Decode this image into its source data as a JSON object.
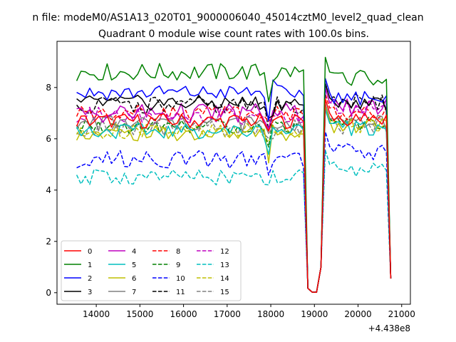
{
  "figure": {
    "suptitle": "n file: modeM0/AS1A13_020T01_9000006040_45014cztM0_level2_quad_clean",
    "offset_text": "+4.438e8"
  },
  "chart_data": {
    "type": "line",
    "title": "Quadrant 0 module wise count rates with 100.0s bins.",
    "xlabel": "",
    "ylabel": "",
    "x_offset": 443800000,
    "xlim": [
      13100,
      21200
    ],
    "ylim": [
      -0.45,
      9.8
    ],
    "x_ticks": [
      14000,
      15000,
      16000,
      17000,
      18000,
      19000,
      20000,
      21000
    ],
    "x_tick_labels": [
      "14000",
      "15000",
      "16000",
      "17000",
      "18000",
      "19000",
      "20000",
      "21000"
    ],
    "y_ticks": [
      0,
      2,
      4,
      6,
      8
    ],
    "y_tick_labels": [
      "0",
      "2",
      "4",
      "6",
      "8"
    ],
    "grid": false,
    "legend_position": "lower-left",
    "legend_columns": 4,
    "x_start": 13550,
    "x_step": 100,
    "gap": {
      "start": 18850,
      "end": 19150,
      "values": [
        0.17,
        0.02,
        0.02,
        1.0
      ]
    },
    "end_value": 0.55,
    "series": [
      {
        "name": "0",
        "color": "#ff0000",
        "style": "solid",
        "level": 6.7,
        "amp": 0.3,
        "post": 6.8
      },
      {
        "name": "1",
        "color": "#008000",
        "style": "solid",
        "level": 8.6,
        "amp": 0.35,
        "post": 8.4
      },
      {
        "name": "2",
        "color": "#0000ff",
        "style": "solid",
        "level": 7.8,
        "amp": 0.3,
        "post": 7.6
      },
      {
        "name": "3",
        "color": "#000000",
        "style": "solid",
        "level": 7.4,
        "amp": 0.3,
        "post": 7.4
      },
      {
        "name": "4",
        "color": "#bf00bf",
        "style": "solid",
        "level": 7.0,
        "amp": 0.4,
        "post": 7.2
      },
      {
        "name": "5",
        "color": "#00bfbf",
        "style": "solid",
        "level": 6.3,
        "amp": 0.3,
        "post": 6.4
      },
      {
        "name": "6",
        "color": "#bfbf00",
        "style": "solid",
        "level": 6.2,
        "amp": 0.3,
        "post": 6.5
      },
      {
        "name": "7",
        "color": "#808080",
        "style": "solid",
        "level": 6.6,
        "amp": 0.35,
        "post": 6.6
      },
      {
        "name": "8",
        "color": "#ff0000",
        "style": "dashed",
        "level": 7.0,
        "amp": 0.3,
        "post": 7.0
      },
      {
        "name": "9",
        "color": "#008000",
        "style": "dashed",
        "level": 6.5,
        "amp": 0.3,
        "post": 6.6
      },
      {
        "name": "10",
        "color": "#0000ff",
        "style": "dashed",
        "level": 5.2,
        "amp": 0.35,
        "post": 5.5
      },
      {
        "name": "11",
        "color": "#000000",
        "style": "dashed",
        "level": 7.3,
        "amp": 0.35,
        "post": 7.4
      },
      {
        "name": "12",
        "color": "#bf00bf",
        "style": "dashed",
        "level": 6.9,
        "amp": 0.35,
        "post": 7.2
      },
      {
        "name": "13",
        "color": "#00bfbf",
        "style": "dashed",
        "level": 4.5,
        "amp": 0.3,
        "post": 4.8
      },
      {
        "name": "14",
        "color": "#bfbf00",
        "style": "dashed",
        "level": 6.3,
        "amp": 0.3,
        "post": 6.5
      },
      {
        "name": "15",
        "color": "#808080",
        "style": "dashed",
        "level": 6.4,
        "amp": 0.35,
        "post": 6.5
      }
    ]
  }
}
